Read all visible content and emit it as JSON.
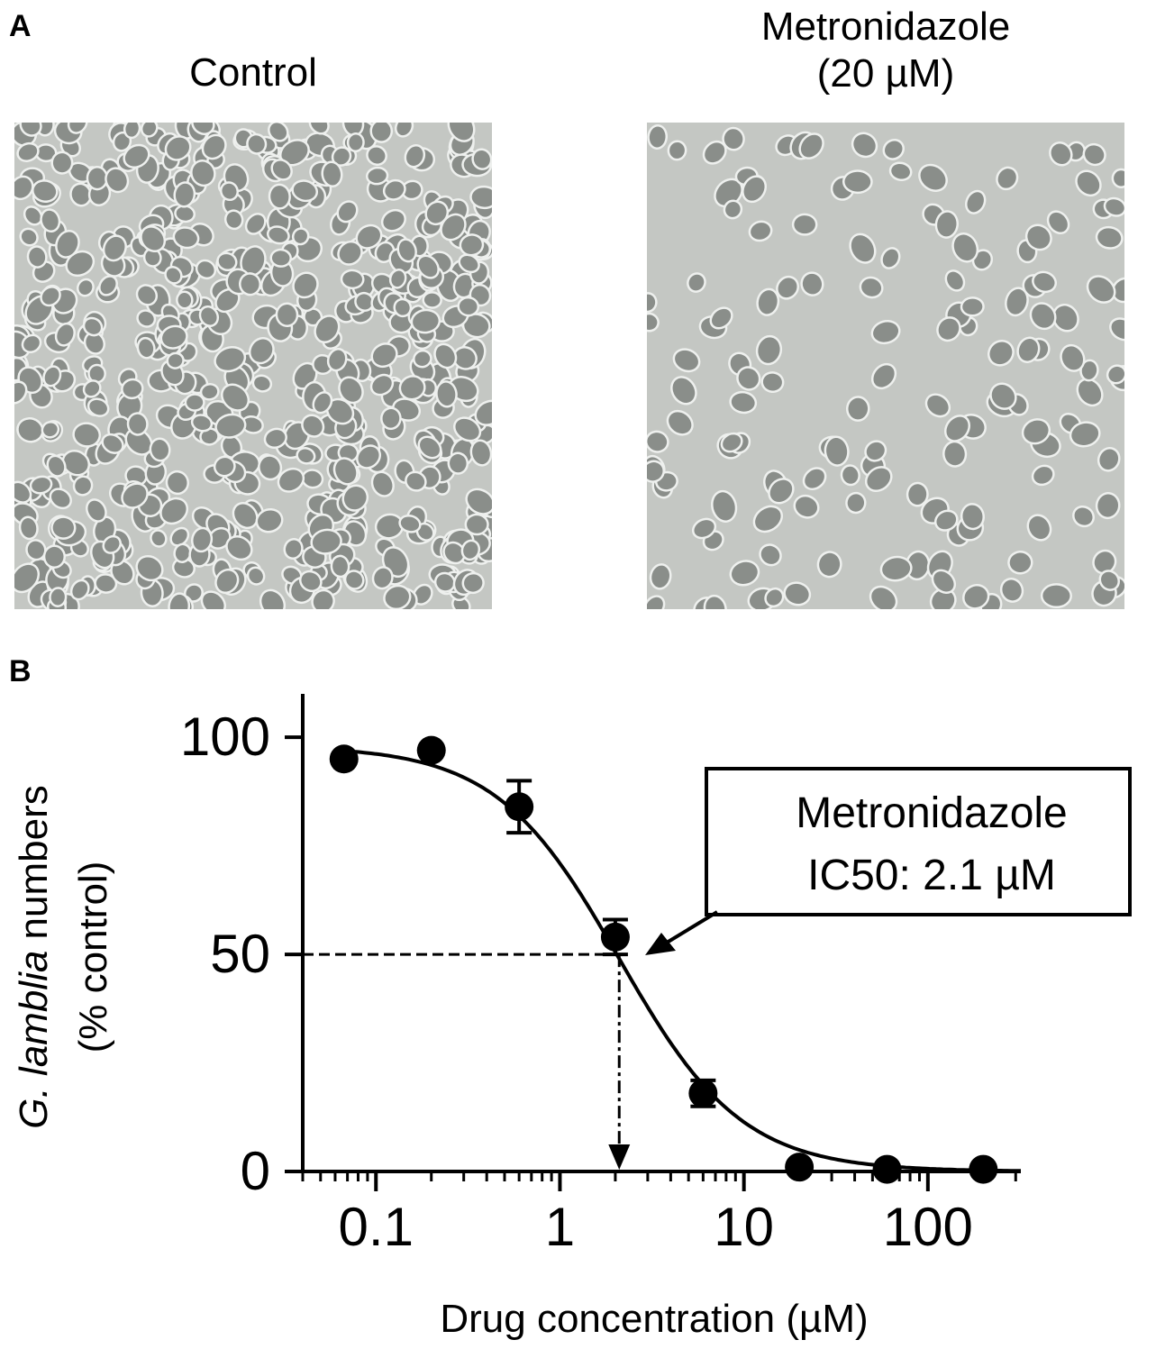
{
  "panel_a": {
    "letter": "A",
    "left_caption": "Control",
    "right_caption_line1": "Metronidazole",
    "right_caption_line2": "(20 µM)",
    "background_color": "#c4c7c3",
    "cell_color": "#8a8e8a"
  },
  "panel_b": {
    "letter": "B"
  },
  "chart_data": {
    "type": "scatter",
    "xscale": "log",
    "xlabel": "Drug concentration (µM)",
    "ylabel_italic": "G. lamblia",
    "ylabel_rest": " numbers",
    "ylabel_line2": "(% control)",
    "xticks": [
      0.1,
      1,
      10,
      100
    ],
    "xtick_labels": [
      "0.1",
      "1",
      "10",
      "100"
    ],
    "yticks": [
      0,
      50,
      100
    ],
    "ytick_labels": [
      "0",
      "50",
      "100"
    ],
    "xlim": [
      0.04,
      320
    ],
    "ylim": [
      0,
      110
    ],
    "points": [
      {
        "x": 0.067,
        "y": 95,
        "err": 0
      },
      {
        "x": 0.2,
        "y": 97,
        "err": 0
      },
      {
        "x": 0.6,
        "y": 84,
        "err": 6
      },
      {
        "x": 2,
        "y": 54,
        "err": 4
      },
      {
        "x": 6,
        "y": 18,
        "err": 3
      },
      {
        "x": 20,
        "y": 1,
        "err": 0
      },
      {
        "x": 60,
        "y": 0.5,
        "err": 0
      },
      {
        "x": 200,
        "y": 0.5,
        "err": 0
      }
    ],
    "fit": {
      "top": 98,
      "bottom": 0,
      "ic50": 2.1,
      "hill": 1.3
    },
    "annotation_line1": "Metronidazole",
    "annotation_line2": "IC50: 2.1 µM",
    "ic50": 2.1
  }
}
